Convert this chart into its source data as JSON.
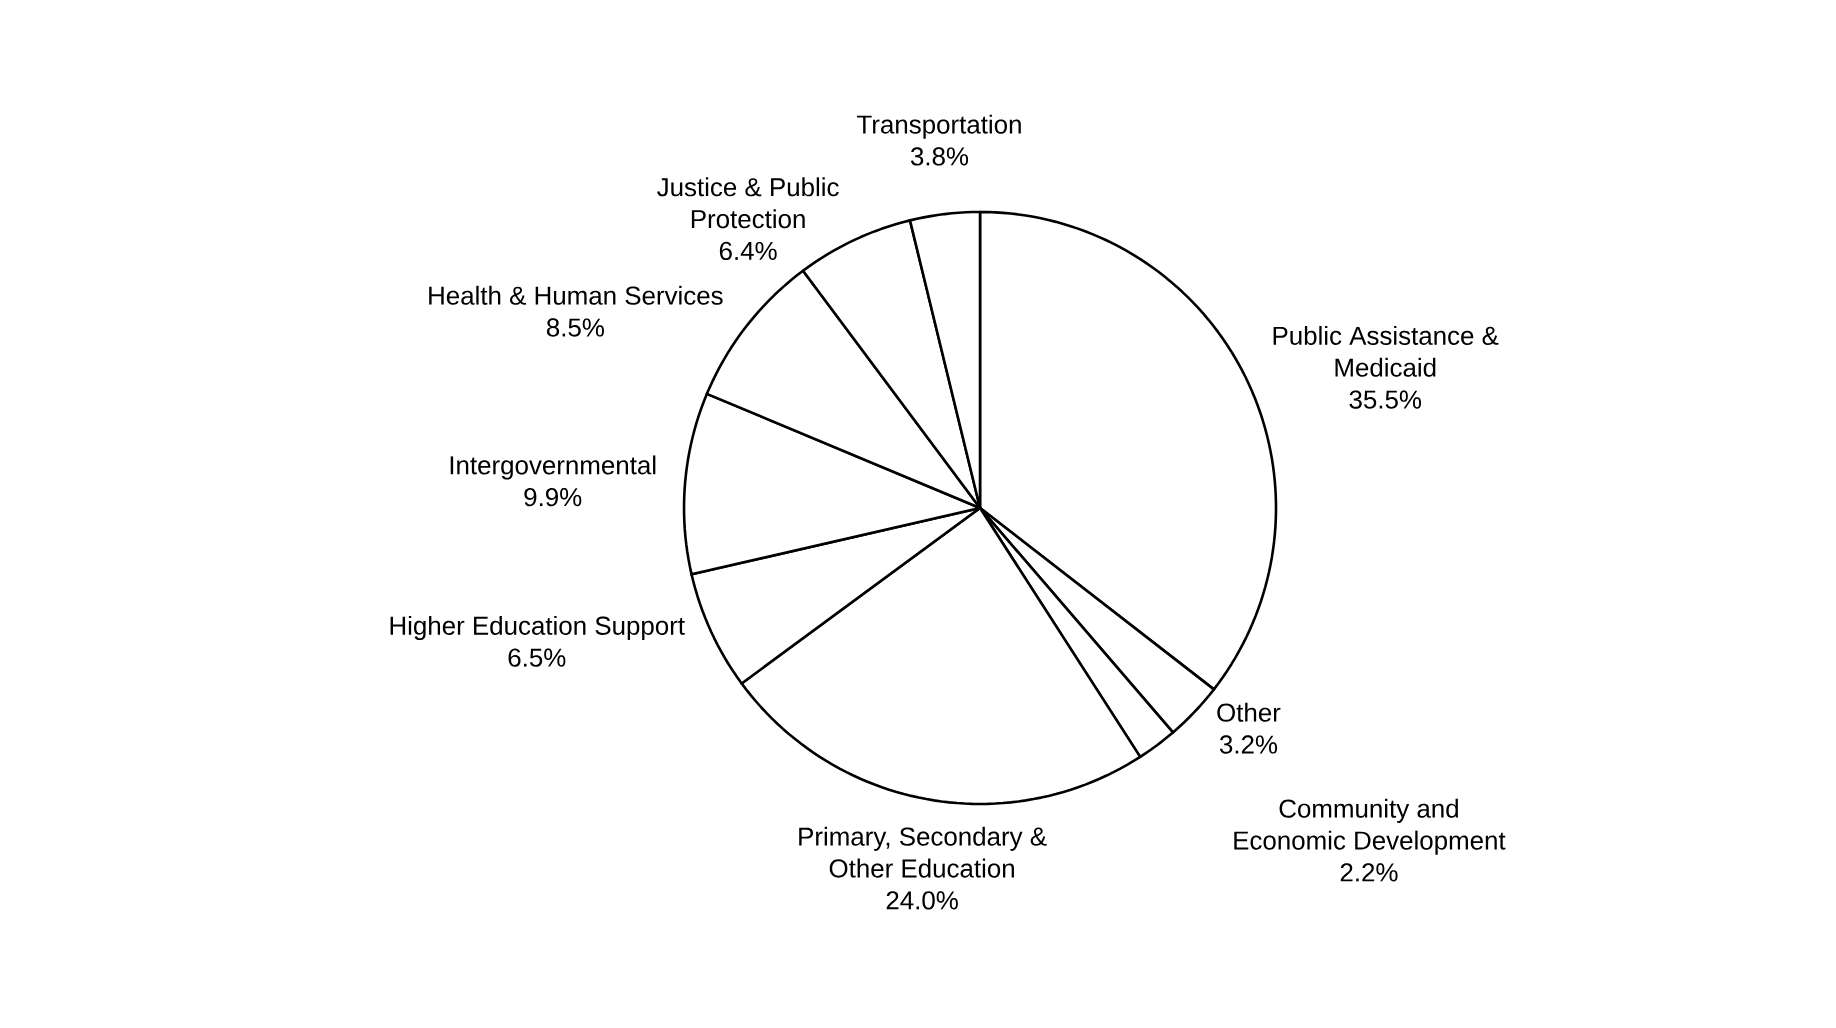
{
  "chart_data": {
    "type": "pie",
    "categories": [
      "Public Assistance & Medicaid",
      "Other",
      "Community and Economic Development",
      "Primary, Secondary & Other Education",
      "Higher Education Support",
      "Intergovernmental",
      "Health & Human Services",
      "Justice & Public Protection",
      "Transportation"
    ],
    "values": [
      35.5,
      3.2,
      2.2,
      24.0,
      6.5,
      9.9,
      8.5,
      6.4,
      3.8
    ],
    "value_labels": [
      "35.5%",
      "3.2%",
      "2.2%",
      "24.0%",
      "6.5%",
      "9.9%",
      "8.5%",
      "6.4%",
      "3.8%"
    ],
    "colors": [
      "#ffffff",
      "#ffffff",
      "#ffffff",
      "#ffffff",
      "#ffffff",
      "#ffffff",
      "#ffffff",
      "#ffffff",
      "#ffffff"
    ]
  }
}
